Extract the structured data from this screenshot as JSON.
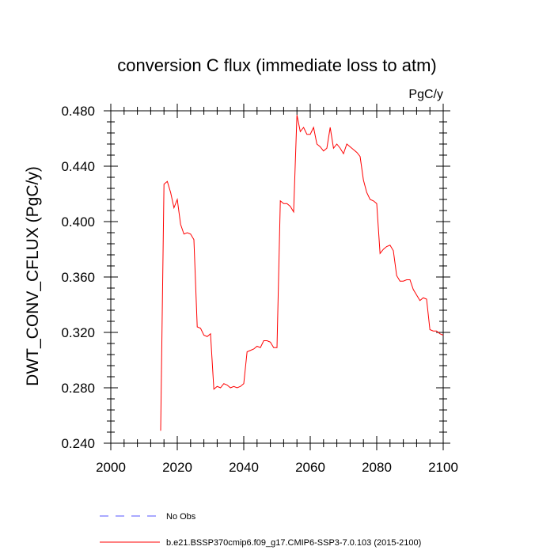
{
  "chart_data": {
    "type": "line",
    "title": "conversion C flux (immediate loss to atm)",
    "units": "PgC/y",
    "xlabel": "",
    "ylabel": "DWT_CONV_CFLUX  (PgC/y)",
    "xlim": [
      2000,
      2100
    ],
    "ylim": [
      0.24,
      0.48
    ],
    "x_ticks": [
      2000,
      2020,
      2040,
      2060,
      2080,
      2100
    ],
    "x_tick_labels": [
      "2000",
      "2020",
      "2040",
      "2060",
      "2080",
      "2100"
    ],
    "y_ticks": [
      0.24,
      0.28,
      0.32,
      0.36,
      0.4,
      0.44,
      0.48
    ],
    "y_tick_labels": [
      "0.240",
      "0.280",
      "0.320",
      "0.360",
      "0.400",
      "0.440",
      "0.480"
    ],
    "grid": false,
    "legend_position": "bottom-left, below plot",
    "series": [
      {
        "name": "No Obs",
        "color": "#5555ff",
        "style": "dashed",
        "x": [],
        "y": []
      },
      {
        "name": "b.e21.BSSP370cmip6.f09_g17.CMIP6-SSP3-7.0.103 (2015-2100)",
        "color": "#ff0000",
        "style": "solid",
        "x": [
          2015,
          2016,
          2017,
          2018,
          2019,
          2020,
          2021,
          2022,
          2023,
          2024,
          2025,
          2026,
          2027,
          2028,
          2029,
          2030,
          2031,
          2032,
          2033,
          2034,
          2035,
          2036,
          2037,
          2038,
          2039,
          2040,
          2041,
          2042,
          2043,
          2044,
          2045,
          2046,
          2047,
          2048,
          2049,
          2050,
          2051,
          2052,
          2053,
          2054,
          2055,
          2056,
          2057,
          2058,
          2059,
          2060,
          2061,
          2062,
          2063,
          2064,
          2065,
          2066,
          2067,
          2068,
          2069,
          2070,
          2071,
          2072,
          2073,
          2074,
          2075,
          2076,
          2077,
          2078,
          2079,
          2080,
          2081,
          2082,
          2083,
          2084,
          2085,
          2086,
          2087,
          2088,
          2089,
          2090,
          2091,
          2092,
          2093,
          2094,
          2095,
          2096,
          2097,
          2098,
          2099,
          2100
        ],
        "y": [
          0.249,
          0.427,
          0.429,
          0.421,
          0.41,
          0.416,
          0.398,
          0.391,
          0.392,
          0.391,
          0.387,
          0.324,
          0.323,
          0.318,
          0.317,
          0.319,
          0.279,
          0.281,
          0.28,
          0.283,
          0.282,
          0.28,
          0.281,
          0.28,
          0.281,
          0.283,
          0.306,
          0.307,
          0.308,
          0.31,
          0.309,
          0.314,
          0.314,
          0.313,
          0.309,
          0.309,
          0.415,
          0.413,
          0.413,
          0.411,
          0.407,
          0.477,
          0.465,
          0.468,
          0.463,
          0.463,
          0.468,
          0.456,
          0.454,
          0.451,
          0.453,
          0.468,
          0.453,
          0.456,
          0.453,
          0.449,
          0.456,
          0.454,
          0.452,
          0.45,
          0.447,
          0.43,
          0.421,
          0.416,
          0.415,
          0.413,
          0.377,
          0.38,
          0.382,
          0.383,
          0.379,
          0.361,
          0.357,
          0.357,
          0.358,
          0.358,
          0.351,
          0.347,
          0.343,
          0.345,
          0.344,
          0.322,
          0.321,
          0.321,
          0.319,
          0.318
        ]
      }
    ]
  }
}
